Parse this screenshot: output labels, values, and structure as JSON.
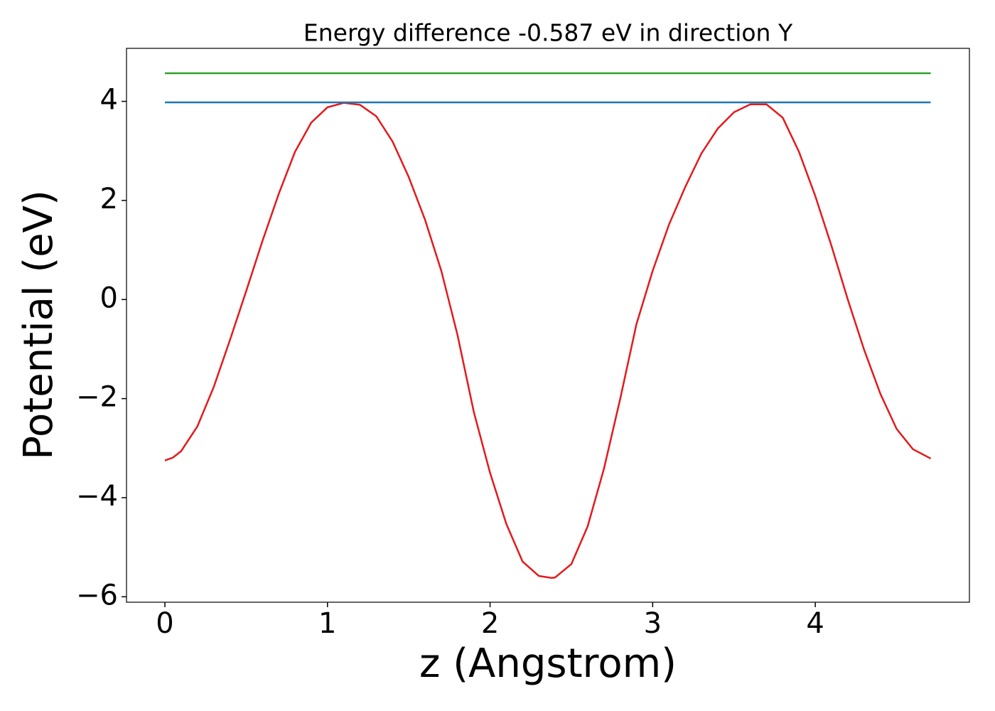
{
  "chart_data": {
    "type": "line",
    "title": "Energy difference -0.587 eV in direction Y",
    "x_label": "z (Angstrom)",
    "y_label": "Potential (eV)",
    "xlim": [
      -0.236,
      4.948
    ],
    "ylim": [
      -6.11,
      5.07
    ],
    "xticks": [
      0,
      1,
      2,
      3,
      4
    ],
    "yticks": [
      {
        "value": -6,
        "label": "−6"
      },
      {
        "value": -4,
        "label": "−4"
      },
      {
        "value": -2,
        "label": "−2"
      },
      0,
      2,
      4
    ],
    "series": [
      {
        "color": "#e31a1c",
        "x": [
          0,
          0.05,
          0.1,
          0.2,
          0.3,
          0.4,
          0.5,
          0.6,
          0.7,
          0.8,
          0.9,
          1.0,
          1.1,
          1.2,
          1.3,
          1.4,
          1.5,
          1.6,
          1.7,
          1.8,
          1.9,
          2.0,
          2.1,
          2.2,
          2.3,
          2.38,
          2.4,
          2.5,
          2.6,
          2.7,
          2.8,
          2.9,
          3.0,
          3.1,
          3.2,
          3.3,
          3.4,
          3.5,
          3.6,
          3.7,
          3.8,
          3.9,
          4.0,
          4.1,
          4.2,
          4.3,
          4.4,
          4.5,
          4.6,
          4.71
        ],
        "values": [
          -3.25,
          -3.19,
          -3.06,
          -2.56,
          -1.77,
          -0.82,
          0.17,
          1.18,
          2.13,
          2.98,
          3.57,
          3.88,
          3.97,
          3.93,
          3.7,
          3.19,
          2.47,
          1.61,
          0.58,
          -0.72,
          -2.27,
          -3.5,
          -4.53,
          -5.29,
          -5.58,
          -5.62,
          -5.61,
          -5.34,
          -4.58,
          -3.42,
          -2.01,
          -0.5,
          0.58,
          1.51,
          2.27,
          2.95,
          3.45,
          3.78,
          3.94,
          3.94,
          3.67,
          2.98,
          2.09,
          1.08,
          0.0,
          -1.01,
          -1.9,
          -2.61,
          -3.02,
          -3.21
        ]
      },
      {
        "color": "#1f77b4",
        "x": [
          0,
          4.71
        ],
        "values": [
          3.98,
          3.98
        ]
      },
      {
        "color": "#2ca02c",
        "x": [
          0,
          4.71
        ],
        "values": [
          4.567,
          4.567
        ]
      }
    ]
  }
}
